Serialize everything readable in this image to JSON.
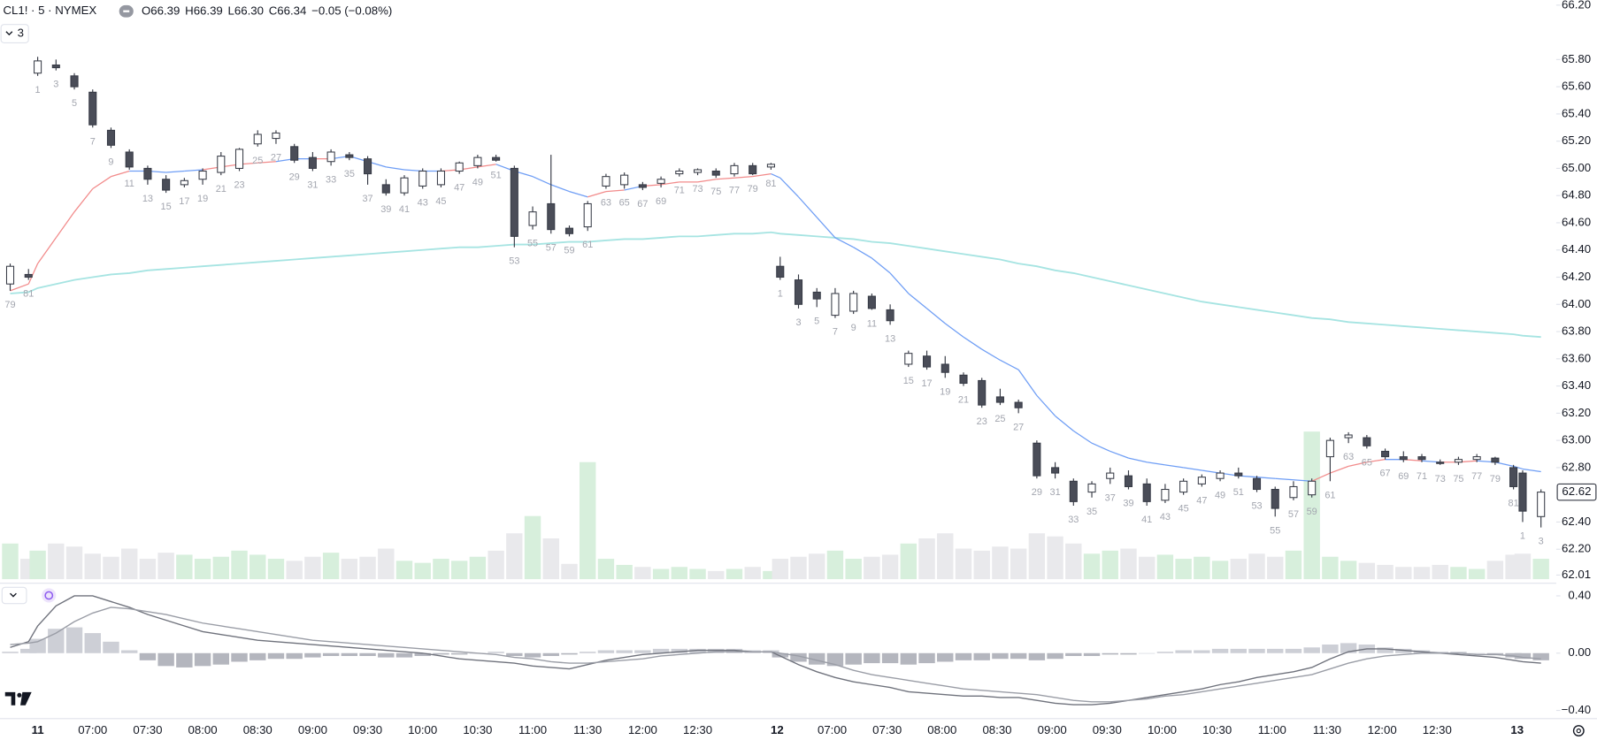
{
  "chart_data": {
    "type": "candlestick",
    "title": "CL1! · 5 · NYMEX",
    "ohlc_legend": [
      {
        "key": "O",
        "value": "66.39"
      },
      {
        "key": "H",
        "value": "66.39"
      },
      {
        "key": "L",
        "value": "66.30"
      },
      {
        "key": "C",
        "value": "66.34"
      }
    ],
    "change": "−0.05 (−0.08%)",
    "collapsed_count": "3",
    "ylim": [
      62.01,
      66.2
    ],
    "yticks": [
      {
        "value": 66.2,
        "label": "66.20"
      },
      {
        "value": 65.8,
        "label": "65.80"
      },
      {
        "value": 65.6,
        "label": "65.60"
      },
      {
        "value": 65.4,
        "label": "65.40"
      },
      {
        "value": 65.2,
        "label": "65.20"
      },
      {
        "value": 65,
        "label": "65.00"
      },
      {
        "value": 64.8,
        "label": "64.80"
      },
      {
        "value": 64.6,
        "label": "64.60"
      },
      {
        "value": 64.4,
        "label": "64.40"
      },
      {
        "value": 64.2,
        "label": "64.20"
      },
      {
        "value": 64,
        "label": "64.00"
      },
      {
        "value": 63.8,
        "label": "63.80"
      },
      {
        "value": 63.6,
        "label": "63.60"
      },
      {
        "value": 63.4,
        "label": "63.40"
      },
      {
        "value": 63.2,
        "label": "63.20"
      },
      {
        "value": 63,
        "label": "63.00"
      },
      {
        "value": 62.8,
        "label": "62.80"
      },
      {
        "value": 62.4,
        "label": "62.40"
      },
      {
        "value": 62.2,
        "label": "62.20"
      },
      62.01
    ],
    "last_price": 62.62,
    "volume_ylim": [
      0,
      150
    ],
    "macd_ylim": [
      -0.45,
      0.46
    ],
    "macd_yticks": [
      {
        "value": 0.4,
        "label": "0.40"
      },
      {
        "value": 0,
        "label": "0.00"
      },
      {
        "value": -0.4,
        "label": "−0.40"
      }
    ],
    "time_axis": [
      [
        "11",
        "07:00",
        "07:30",
        "08:00",
        "08:30",
        "09:00",
        "09:30",
        "10:00",
        "10:30",
        "11:00",
        "11:30",
        "12:00",
        "12:30"
      ],
      [
        "12",
        "07:00",
        "07:30",
        "08:00",
        "08:30",
        "09:00",
        "09:30",
        "10:00",
        "10:30",
        "11:00",
        "11:30",
        "12:00",
        "12:30"
      ],
      [
        "13"
      ]
    ],
    "colors": {
      "up": "#ffffff",
      "down": "#4a4d58",
      "outline": "#363a45",
      "volume_up": "#d7efdc",
      "volume_down": "#e9e9ec",
      "vwap_above": "#f28b8b",
      "vwap_below": "#6f9ef5",
      "ma": "#a6e4e2",
      "macd": "#6f727c",
      "signal": "#9a9da6",
      "hist_pos": "#cdcfd6",
      "hist_neg": "#b4b6be"
    },
    "sessions": [
      {
        "bar_labels": [
          79,
          81
        ],
        "open": [
          64.15,
          64.22
        ],
        "high": [
          64.3,
          64.26
        ],
        "low": [
          64.1,
          64.18
        ],
        "close": [
          64.28,
          64.2
        ],
        "volume": [
          35,
          20
        ],
        "vwap": [
          64.1,
          64.15
        ],
        "ma": [
          64.08,
          64.09
        ],
        "macd": [
          0.04,
          0.08
        ],
        "signal": [
          0.06,
          0.07
        ],
        "hist": [
          0.01,
          0.03
        ]
      },
      {
        "bar_labels": [
          1,
          3,
          5,
          7,
          9,
          11,
          13,
          15,
          17,
          19,
          21,
          23,
          25,
          27,
          29,
          31,
          33,
          35,
          37,
          39,
          41,
          43,
          45,
          47,
          49,
          51,
          53,
          55,
          57,
          59,
          61,
          63,
          65,
          67,
          69,
          71,
          73,
          75,
          77,
          79,
          81
        ],
        "open": [
          65.7,
          65.76,
          65.68,
          65.56,
          65.28,
          65.12,
          65.0,
          64.92,
          64.88,
          64.92,
          64.97,
          65.0,
          65.18,
          65.22,
          65.16,
          65.08,
          65.05,
          65.1,
          65.07,
          64.88,
          64.82,
          64.87,
          64.88,
          64.98,
          65.02,
          65.08,
          65.0,
          64.58,
          64.74,
          64.56,
          64.57,
          64.87,
          64.88,
          64.88,
          64.89,
          64.96,
          64.97,
          64.98,
          64.96,
          65.02,
          65.01
        ],
        "high": [
          65.82,
          65.8,
          65.7,
          65.58,
          65.3,
          65.14,
          65.02,
          64.95,
          64.93,
          65.0,
          65.12,
          65.15,
          65.28,
          65.28,
          65.18,
          65.12,
          65.14,
          65.12,
          65.09,
          64.92,
          64.95,
          65.0,
          65.0,
          65.05,
          65.1,
          65.1,
          65.02,
          64.72,
          65.1,
          64.58,
          64.76,
          64.96,
          64.97,
          64.9,
          64.94,
          65.0,
          65.0,
          65.0,
          65.04,
          65.04,
          65.04
        ],
        "low": [
          65.68,
          65.72,
          65.58,
          65.3,
          65.15,
          64.99,
          64.88,
          64.82,
          64.86,
          64.88,
          64.95,
          64.98,
          65.16,
          65.18,
          65.04,
          64.98,
          65.02,
          65.06,
          64.88,
          64.8,
          64.8,
          64.85,
          64.86,
          64.96,
          65.0,
          65.05,
          64.42,
          64.55,
          64.52,
          64.5,
          64.54,
          64.85,
          64.85,
          64.84,
          64.86,
          64.94,
          64.95,
          64.93,
          64.94,
          64.95,
          64.99
        ],
        "close": [
          65.79,
          65.74,
          65.6,
          65.32,
          65.17,
          65.01,
          64.92,
          64.84,
          64.91,
          64.98,
          65.09,
          65.14,
          65.25,
          65.26,
          65.06,
          65.0,
          65.12,
          65.08,
          64.96,
          64.82,
          64.93,
          64.98,
          64.98,
          65.04,
          65.08,
          65.06,
          64.5,
          64.68,
          64.55,
          64.52,
          64.74,
          64.94,
          64.95,
          64.86,
          64.92,
          64.98,
          64.99,
          64.95,
          65.02,
          64.96,
          65.03
        ],
        "volume": [
          28,
          35,
          32,
          25,
          22,
          30,
          20,
          26,
          24,
          20,
          22,
          28,
          24,
          20,
          18,
          22,
          26,
          20,
          22,
          30,
          18,
          16,
          20,
          18,
          22,
          28,
          45,
          62,
          40,
          15,
          115,
          20,
          14,
          12,
          10,
          12,
          10,
          8,
          10,
          12,
          8
        ],
        "vwap": [
          64.3,
          64.49,
          64.68,
          64.85,
          64.94,
          64.98,
          64.98,
          64.97,
          64.98,
          64.99,
          65.01,
          65.03,
          65.04,
          65.05,
          65.07,
          65.07,
          65.07,
          65.09,
          65.05,
          65.01,
          64.99,
          64.98,
          64.98,
          64.99,
          65.01,
          65.03,
          64.98,
          64.94,
          64.88,
          64.83,
          64.79,
          64.83,
          64.84,
          64.87,
          64.88,
          64.9,
          64.9,
          64.92,
          64.93,
          64.94,
          64.96
        ],
        "ma": [
          64.12,
          64.15,
          64.18,
          64.2,
          64.22,
          64.23,
          64.25,
          64.26,
          64.27,
          64.28,
          64.29,
          64.3,
          64.31,
          64.32,
          64.33,
          64.34,
          64.35,
          64.36,
          64.37,
          64.38,
          64.39,
          64.4,
          64.41,
          64.42,
          64.42,
          64.43,
          64.44,
          64.44,
          64.45,
          64.46,
          64.46,
          64.47,
          64.48,
          64.48,
          64.49,
          64.5,
          64.5,
          64.51,
          64.52,
          64.52,
          64.53
        ],
        "macd": [
          0.19,
          0.33,
          0.4,
          0.4,
          0.36,
          0.32,
          0.27,
          0.23,
          0.19,
          0.15,
          0.13,
          0.11,
          0.09,
          0.08,
          0.07,
          0.06,
          0.05,
          0.04,
          0.03,
          0.02,
          0.01,
          0.0,
          -0.02,
          -0.04,
          -0.05,
          -0.06,
          -0.07,
          -0.09,
          -0.1,
          -0.11,
          -0.08,
          -0.05,
          -0.03,
          -0.01,
          0.0,
          0.01,
          0.02,
          0.02,
          0.02,
          0.01,
          0.01
        ],
        "signal": [
          0.08,
          0.14,
          0.22,
          0.28,
          0.32,
          0.31,
          0.29,
          0.27,
          0.24,
          0.21,
          0.19,
          0.17,
          0.15,
          0.13,
          0.11,
          0.09,
          0.08,
          0.07,
          0.06,
          0.05,
          0.04,
          0.03,
          0.02,
          0.01,
          0.0,
          -0.01,
          -0.03,
          -0.04,
          -0.06,
          -0.07,
          -0.07,
          -0.06,
          -0.05,
          -0.04,
          -0.02,
          -0.01,
          0.0,
          0.01,
          0.01,
          0.01,
          0.01
        ],
        "hist": [
          0.1,
          0.17,
          0.18,
          0.14,
          0.08,
          0.02,
          -0.05,
          -0.09,
          -0.1,
          -0.09,
          -0.08,
          -0.06,
          -0.05,
          -0.04,
          -0.04,
          -0.03,
          -0.02,
          -0.02,
          -0.02,
          -0.03,
          -0.03,
          -0.02,
          -0.01,
          -0.01,
          0.0,
          0.01,
          -0.02,
          -0.03,
          -0.02,
          -0.01,
          0.01,
          0.02,
          0.02,
          0.02,
          0.03,
          0.03,
          0.03,
          0.03,
          0.03,
          0.02,
          0.02
        ]
      },
      {
        "bar_labels": [
          1,
          3,
          5,
          7,
          9,
          11,
          13,
          15,
          17,
          19,
          21,
          23,
          25,
          27,
          29,
          31,
          33,
          35,
          37,
          39,
          41,
          43,
          45,
          47,
          49,
          51,
          53,
          55,
          57,
          59,
          61,
          63,
          65,
          67,
          69,
          71,
          73,
          75,
          77,
          79,
          81
        ],
        "open": [
          64.28,
          64.18,
          64.09,
          63.92,
          63.95,
          64.06,
          63.96,
          63.56,
          63.62,
          63.56,
          63.48,
          63.44,
          63.32,
          63.28,
          62.98,
          62.8,
          62.7,
          62.62,
          62.72,
          62.74,
          62.68,
          62.56,
          62.62,
          62.68,
          62.72,
          62.76,
          62.72,
          62.64,
          62.58,
          62.6,
          62.88,
          63.02,
          63.02,
          62.92,
          62.88,
          62.88,
          62.84,
          62.84,
          62.86,
          62.87,
          62.8
        ],
        "high": [
          64.35,
          64.22,
          64.12,
          64.12,
          64.1,
          64.08,
          64.0,
          63.66,
          63.66,
          63.62,
          63.5,
          63.46,
          63.38,
          63.3,
          63.0,
          62.84,
          62.72,
          62.7,
          62.8,
          62.78,
          62.72,
          62.68,
          62.72,
          62.75,
          62.78,
          62.8,
          62.74,
          62.66,
          62.7,
          62.72,
          63.02,
          63.06,
          63.04,
          62.94,
          62.92,
          62.9,
          62.86,
          62.88,
          62.9,
          62.88,
          62.82
        ],
        "low": [
          64.18,
          63.97,
          63.98,
          63.9,
          63.93,
          63.96,
          63.85,
          63.54,
          63.52,
          63.46,
          63.4,
          63.24,
          63.26,
          63.2,
          62.72,
          62.72,
          62.52,
          62.58,
          62.68,
          62.64,
          62.52,
          62.54,
          62.6,
          62.66,
          62.7,
          62.72,
          62.62,
          62.44,
          62.56,
          62.58,
          62.7,
          62.98,
          62.94,
          62.86,
          62.84,
          62.84,
          62.82,
          62.82,
          62.84,
          62.82,
          62.64
        ],
        "close": [
          64.2,
          64.0,
          64.04,
          64.08,
          64.08,
          63.97,
          63.88,
          63.64,
          63.54,
          63.5,
          63.42,
          63.26,
          63.28,
          63.24,
          62.74,
          62.76,
          62.55,
          62.68,
          62.76,
          62.66,
          62.55,
          62.64,
          62.7,
          62.73,
          62.76,
          62.74,
          62.64,
          62.5,
          62.66,
          62.7,
          63.0,
          63.04,
          62.96,
          62.88,
          62.86,
          62.86,
          62.83,
          62.86,
          62.88,
          62.84,
          62.66
        ],
        "volume": [
          20,
          22,
          25,
          28,
          20,
          22,
          24,
          35,
          40,
          45,
          30,
          28,
          32,
          30,
          45,
          42,
          35,
          25,
          28,
          30,
          22,
          24,
          20,
          22,
          18,
          20,
          25,
          22,
          28,
          145,
          22,
          18,
          16,
          14,
          12,
          12,
          14,
          12,
          10,
          18,
          24
        ],
        "vwap": [
          64.93,
          64.79,
          64.64,
          64.49,
          64.42,
          64.34,
          64.23,
          64.08,
          63.97,
          63.86,
          63.76,
          63.67,
          63.59,
          63.52,
          63.33,
          63.18,
          63.07,
          62.98,
          62.92,
          62.87,
          62.84,
          62.82,
          62.8,
          62.78,
          62.76,
          62.74,
          62.73,
          62.72,
          62.71,
          62.7,
          62.76,
          62.81,
          62.84,
          62.86,
          62.86,
          62.85,
          62.84,
          62.84,
          62.85,
          62.84,
          62.81
        ],
        "ma": [
          64.52,
          64.51,
          64.5,
          64.49,
          64.48,
          64.46,
          64.45,
          64.43,
          64.41,
          64.39,
          64.37,
          64.35,
          64.33,
          64.3,
          64.28,
          64.25,
          64.23,
          64.2,
          64.17,
          64.14,
          64.11,
          64.08,
          64.05,
          64.02,
          64.0,
          63.98,
          63.96,
          63.94,
          63.92,
          63.9,
          63.89,
          63.87,
          63.86,
          63.85,
          63.84,
          63.83,
          63.82,
          63.81,
          63.8,
          63.79,
          63.78
        ],
        "macd": [
          -0.02,
          -0.08,
          -0.13,
          -0.17,
          -0.2,
          -0.22,
          -0.24,
          -0.27,
          -0.28,
          -0.29,
          -0.3,
          -0.3,
          -0.31,
          -0.31,
          -0.33,
          -0.35,
          -0.36,
          -0.36,
          -0.35,
          -0.33,
          -0.31,
          -0.29,
          -0.27,
          -0.25,
          -0.22,
          -0.2,
          -0.17,
          -0.15,
          -0.13,
          -0.1,
          -0.04,
          0.01,
          0.03,
          0.03,
          0.02,
          0.01,
          0.0,
          -0.01,
          -0.02,
          -0.03,
          -0.05
        ],
        "signal": [
          0.0,
          -0.02,
          -0.05,
          -0.08,
          -0.12,
          -0.15,
          -0.17,
          -0.19,
          -0.21,
          -0.23,
          -0.25,
          -0.26,
          -0.27,
          -0.28,
          -0.29,
          -0.31,
          -0.33,
          -0.34,
          -0.34,
          -0.33,
          -0.32,
          -0.3,
          -0.29,
          -0.27,
          -0.25,
          -0.23,
          -0.21,
          -0.19,
          -0.17,
          -0.15,
          -0.11,
          -0.07,
          -0.04,
          -0.02,
          -0.01,
          0.0,
          0.0,
          0.0,
          -0.01,
          -0.01,
          -0.02
        ],
        "hist": [
          -0.03,
          -0.06,
          -0.08,
          -0.09,
          -0.08,
          -0.07,
          -0.07,
          -0.08,
          -0.07,
          -0.06,
          -0.05,
          -0.05,
          -0.04,
          -0.04,
          -0.05,
          -0.04,
          -0.02,
          -0.02,
          -0.01,
          -0.01,
          0.0,
          0.01,
          0.02,
          0.02,
          0.03,
          0.03,
          0.03,
          0.03,
          0.03,
          0.04,
          0.06,
          0.07,
          0.06,
          0.04,
          0.03,
          0.02,
          0.01,
          0.01,
          0.0,
          -0.01,
          -0.03
        ]
      },
      {
        "bar_labels": [
          1,
          3
        ],
        "open": [
          62.76,
          62.44
        ],
        "high": [
          62.78,
          62.64
        ],
        "low": [
          62.4,
          62.36
        ],
        "close": [
          62.48,
          62.62
        ],
        "volume": [
          25,
          20
        ],
        "vwap": [
          62.79,
          62.77
        ],
        "ma": [
          63.77,
          63.76
        ],
        "macd": [
          -0.06,
          -0.07
        ],
        "signal": [
          -0.03,
          -0.04
        ],
        "hist": [
          -0.04,
          -0.05
        ]
      }
    ]
  }
}
